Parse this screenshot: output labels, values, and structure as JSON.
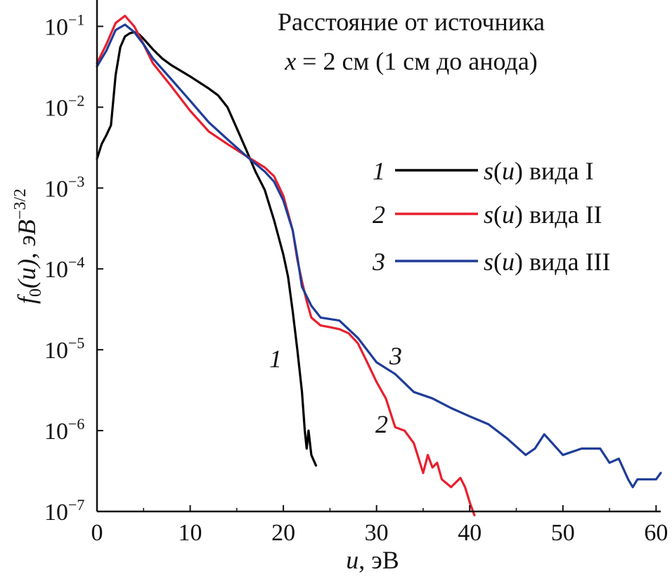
{
  "chart_data": {
    "type": "line",
    "title_line1": "Расстояние от источника",
    "title_line2_var": "x",
    "title_line2_rest": " = 2 см (1 см до анода)",
    "xlabel_var": "u",
    "xlabel_rest": ", эВ",
    "ylabel_main": "f",
    "ylabel_sub": "0",
    "ylabel_mid": "(u), эВ",
    "ylabel_sup": "−3/2",
    "yscale": "log",
    "xlim": [
      0,
      60.5
    ],
    "ylim": [
      1e-07,
      0.16
    ],
    "x_ticks": [
      0,
      10,
      20,
      30,
      40,
      50,
      60
    ],
    "x_tick_labels": [
      "0",
      "10",
      "20",
      "30",
      "40",
      "50",
      "60"
    ],
    "y_ticks": [
      1e-07,
      1e-06,
      1e-05,
      0.0001,
      0.001,
      0.01,
      0.1
    ],
    "y_tick_base": "10",
    "y_tick_exponents": [
      "−7",
      "−6",
      "−5",
      "−4",
      "−3",
      "−2",
      "−1"
    ],
    "series": [
      {
        "name": "s(u) вида I",
        "legend_num": "1",
        "legend_func": "s",
        "legend_arg": "u",
        "legend_rest": " вида I",
        "curve_label": "1",
        "color": "#000000",
        "points": [
          [
            0.0,
            0.0023
          ],
          [
            0.5,
            0.0035
          ],
          [
            1.0,
            0.0045
          ],
          [
            1.5,
            0.006
          ],
          [
            2.0,
            0.025
          ],
          [
            2.5,
            0.055
          ],
          [
            3.0,
            0.075
          ],
          [
            3.5,
            0.082
          ],
          [
            4.0,
            0.085
          ],
          [
            4.5,
            0.08
          ],
          [
            5.0,
            0.07
          ],
          [
            6.0,
            0.052
          ],
          [
            7.0,
            0.04
          ],
          [
            8.0,
            0.033
          ],
          [
            10.0,
            0.024
          ],
          [
            12.0,
            0.017
          ],
          [
            13.0,
            0.014
          ],
          [
            14.0,
            0.01
          ],
          [
            15.0,
            0.0055
          ],
          [
            16.0,
            0.003
          ],
          [
            17.0,
            0.0016
          ],
          [
            18.0,
            0.00095
          ],
          [
            19.0,
            0.0004
          ],
          [
            20.0,
            0.00015
          ],
          [
            20.5,
            8e-05
          ],
          [
            21.0,
            3e-05
          ],
          [
            21.5,
            1e-05
          ],
          [
            22.0,
            3e-06
          ],
          [
            22.3,
            1e-06
          ],
          [
            22.5,
            6e-07
          ],
          [
            22.7,
            1e-06
          ],
          [
            23.0,
            5e-07
          ],
          [
            23.5,
            3.7e-07
          ]
        ]
      },
      {
        "name": "s(u) вида II",
        "legend_num": "2",
        "legend_func": "s",
        "legend_arg": "u",
        "legend_rest": " вида II",
        "curve_label": "2",
        "color": "#e8202f",
        "points": [
          [
            0.0,
            0.035
          ],
          [
            1.0,
            0.06
          ],
          [
            2.0,
            0.11
          ],
          [
            3.0,
            0.135
          ],
          [
            4.0,
            0.1
          ],
          [
            5.0,
            0.06
          ],
          [
            6.0,
            0.035
          ],
          [
            8.0,
            0.018
          ],
          [
            10.0,
            0.009
          ],
          [
            12.0,
            0.005
          ],
          [
            14.0,
            0.0035
          ],
          [
            16.0,
            0.0025
          ],
          [
            18.0,
            0.0018
          ],
          [
            19.0,
            0.0014
          ],
          [
            20.0,
            0.0008
          ],
          [
            21.0,
            0.0003
          ],
          [
            21.5,
            0.00013
          ],
          [
            22.0,
            7e-05
          ],
          [
            22.5,
            4e-05
          ],
          [
            23.0,
            2.5e-05
          ],
          [
            24.0,
            2e-05
          ],
          [
            25.0,
            1.9e-05
          ],
          [
            26.0,
            1.8e-05
          ],
          [
            27.0,
            1.6e-05
          ],
          [
            28.0,
            1.2e-05
          ],
          [
            29.0,
            7e-06
          ],
          [
            30.0,
            4e-06
          ],
          [
            31.0,
            2.5e-06
          ],
          [
            32.0,
            1.1e-06
          ],
          [
            33.0,
            1e-06
          ],
          [
            34.0,
            7e-07
          ],
          [
            35.0,
            3e-07
          ],
          [
            35.5,
            5e-07
          ],
          [
            36.0,
            3.5e-07
          ],
          [
            36.5,
            4e-07
          ],
          [
            37.0,
            2.5e-07
          ],
          [
            38.0,
            2e-07
          ],
          [
            39.0,
            2.6e-07
          ],
          [
            39.5,
            2e-07
          ],
          [
            40.0,
            1.3e-07
          ],
          [
            40.5,
            9e-08
          ]
        ]
      },
      {
        "name": "s(u) вида III",
        "legend_num": "3",
        "legend_func": "s",
        "legend_arg": "u",
        "legend_rest": " вида III",
        "curve_label": "3",
        "color": "#1f3d99",
        "points": [
          [
            0.0,
            0.032
          ],
          [
            1.0,
            0.05
          ],
          [
            2.0,
            0.09
          ],
          [
            3.0,
            0.105
          ],
          [
            4.0,
            0.085
          ],
          [
            5.0,
            0.06
          ],
          [
            6.0,
            0.04
          ],
          [
            8.0,
            0.022
          ],
          [
            10.0,
            0.012
          ],
          [
            12.0,
            0.0065
          ],
          [
            14.0,
            0.004
          ],
          [
            16.0,
            0.0025
          ],
          [
            18.0,
            0.0016
          ],
          [
            19.0,
            0.0012
          ],
          [
            20.0,
            0.0007
          ],
          [
            21.0,
            0.0003
          ],
          [
            21.5,
            0.00014
          ],
          [
            22.0,
            6e-05
          ],
          [
            23.0,
            3.5e-05
          ],
          [
            24.0,
            2.5e-05
          ],
          [
            26.0,
            2.3e-05
          ],
          [
            28.0,
            1.4e-05
          ],
          [
            30.0,
            7e-06
          ],
          [
            32.0,
            5e-06
          ],
          [
            34.0,
            3e-06
          ],
          [
            36.0,
            2.5e-06
          ],
          [
            38.0,
            1.9e-06
          ],
          [
            40.0,
            1.5e-06
          ],
          [
            42.0,
            1.2e-06
          ],
          [
            44.0,
            8e-07
          ],
          [
            46.0,
            5e-07
          ],
          [
            47.0,
            6e-07
          ],
          [
            48.0,
            9e-07
          ],
          [
            50.0,
            5e-07
          ],
          [
            52.0,
            6e-07
          ],
          [
            54.0,
            6e-07
          ],
          [
            55.0,
            4e-07
          ],
          [
            56.0,
            4.5e-07
          ],
          [
            57.0,
            2.5e-07
          ],
          [
            57.5,
            2e-07
          ],
          [
            58.0,
            2.5e-07
          ],
          [
            59.0,
            2.5e-07
          ],
          [
            60.0,
            2.5e-07
          ],
          [
            60.5,
            3e-07
          ]
        ]
      }
    ]
  }
}
